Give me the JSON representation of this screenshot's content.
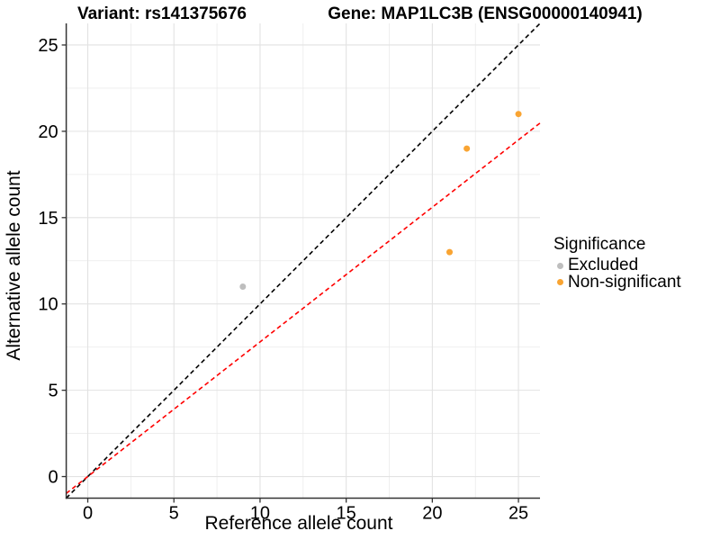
{
  "chart_data": {
    "type": "scatter",
    "titles": {
      "variant": "Variant: rs141375676",
      "gene": "Gene: MAP1LC3B (ENSG00000140941)"
    },
    "x_axis": {
      "label": "Reference allele count",
      "ticks": [
        0,
        5,
        10,
        15,
        20,
        25
      ],
      "minor_ticks": [
        2.5,
        7.5,
        12.5,
        17.5,
        22.5
      ],
      "range": [
        -1.25,
        26.25
      ]
    },
    "y_axis": {
      "label": "Alternative allele count",
      "ticks": [
        0,
        5,
        10,
        15,
        20,
        25
      ],
      "minor_ticks": [
        2.5,
        7.5,
        12.5,
        17.5,
        22.5
      ],
      "range": [
        -1.25,
        26.25
      ]
    },
    "series": [
      {
        "name": "Excluded",
        "color": "#BEBEBE",
        "points": [
          {
            "x": 9,
            "y": 11
          }
        ]
      },
      {
        "name": "Non-significant",
        "color": "#F9A432",
        "points": [
          {
            "x": 21,
            "y": 13
          },
          {
            "x": 22,
            "y": 19
          },
          {
            "x": 25,
            "y": 21
          }
        ]
      }
    ],
    "lines": [
      {
        "name": "identity-line",
        "slope": 1,
        "intercept": 0,
        "color": "#000000",
        "style": "dashed"
      },
      {
        "name": "allelic-balance-line",
        "slope": 0.78,
        "intercept": 0,
        "color": "#FF0000",
        "style": "dashed"
      }
    ],
    "legend": {
      "title": "Significance",
      "position": "right",
      "items": [
        {
          "label": "Excluded",
          "color": "#BEBEBE"
        },
        {
          "label": "Non-significant",
          "color": "#F9A432"
        }
      ]
    },
    "style": {
      "grid": true,
      "grid_major": "#E2E2E2",
      "grid_minor": "#EBEBEB",
      "axis_color": "#333333",
      "background": "#FFFFFF"
    }
  }
}
